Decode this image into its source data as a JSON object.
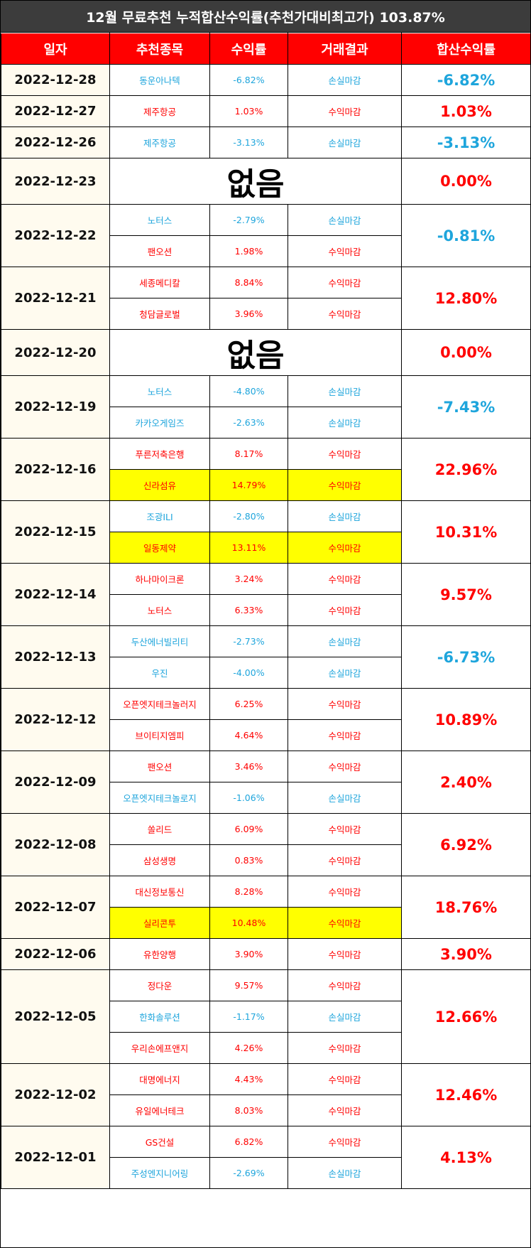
{
  "header": {
    "title": "12월 무료추천 누적합산수익률(추천가대비최고가) 103.87%"
  },
  "table": {
    "columns": [
      "일자",
      "추천종목",
      "수익률",
      "거래결과",
      "합산수익률"
    ],
    "rows": [
      {
        "date": "2022-12-28",
        "items": [
          {
            "name": "동운아나텍",
            "rate": "-6.82%",
            "result": "손실마감"
          }
        ],
        "total": "-6.82%"
      },
      {
        "date": "2022-12-27",
        "items": [
          {
            "name": "제주항공",
            "rate": "1.03%",
            "result": "수익마감"
          }
        ],
        "total": "1.03%"
      },
      {
        "date": "2022-12-26",
        "items": [
          {
            "name": "제주항공",
            "rate": "-3.13%",
            "result": "손실마감"
          }
        ],
        "total": "-3.13%"
      },
      {
        "date": "2022-12-23",
        "note": "없음",
        "total": "0.00%"
      },
      {
        "date": "2022-12-22",
        "items": [
          {
            "name": "노터스",
            "rate": "-2.79%",
            "result": "손실마감"
          },
          {
            "name": "팬오션",
            "rate": "1.98%",
            "result": "수익마감"
          }
        ],
        "total": "-0.81%"
      },
      {
        "date": "2022-12-21",
        "items": [
          {
            "name": "세종메디칼",
            "rate": "8.84%",
            "result": "수익마감"
          },
          {
            "name": "청담글로벌",
            "rate": "3.96%",
            "result": "수익마감"
          }
        ],
        "total": "12.80%"
      },
      {
        "date": "2022-12-20",
        "note": "없음",
        "total": "0.00%"
      },
      {
        "date": "2022-12-19",
        "items": [
          {
            "name": "노터스",
            "rate": "-4.80%",
            "result": "손실마감"
          },
          {
            "name": "카카오게임즈",
            "rate": "-2.63%",
            "result": "손실마감"
          }
        ],
        "total": "-7.43%"
      },
      {
        "date": "2022-12-16",
        "items": [
          {
            "name": "푸른저축은행",
            "rate": "8.17%",
            "result": "수익마감"
          },
          {
            "name": "신라섬유",
            "rate": "14.79%",
            "result": "수익마감",
            "highlight": true
          }
        ],
        "total": "22.96%"
      },
      {
        "date": "2022-12-15",
        "items": [
          {
            "name": "조광ILI",
            "rate": "-2.80%",
            "result": "손실마감"
          },
          {
            "name": "일동제약",
            "rate": "13.11%",
            "result": "수익마감",
            "highlight": true
          }
        ],
        "total": "10.31%"
      },
      {
        "date": "2022-12-14",
        "items": [
          {
            "name": "하나마이크론",
            "rate": "3.24%",
            "result": "수익마감"
          },
          {
            "name": "노터스",
            "rate": "6.33%",
            "result": "수익마감"
          }
        ],
        "total": "9.57%"
      },
      {
        "date": "2022-12-13",
        "items": [
          {
            "name": "두산에너빌리티",
            "rate": "-2.73%",
            "result": "손실마감"
          },
          {
            "name": "우진",
            "rate": "-4.00%",
            "result": "손실마감"
          }
        ],
        "total": "-6.73%"
      },
      {
        "date": "2022-12-12",
        "items": [
          {
            "name": "오픈엣지테크놀러지",
            "rate": "6.25%",
            "result": "수익마감"
          },
          {
            "name": "브이티지엠피",
            "rate": "4.64%",
            "result": "수익마감"
          }
        ],
        "total": "10.89%"
      },
      {
        "date": "2022-12-09",
        "items": [
          {
            "name": "팬오션",
            "rate": "3.46%",
            "result": "수익마감"
          },
          {
            "name": "오픈엣지테크놀로지",
            "rate": "-1.06%",
            "result": "손실마감"
          }
        ],
        "total": "2.40%"
      },
      {
        "date": "2022-12-08",
        "items": [
          {
            "name": "쏠리드",
            "rate": "6.09%",
            "result": "수익마감"
          },
          {
            "name": "삼성생명",
            "rate": "0.83%",
            "result": "수익마감"
          }
        ],
        "total": "6.92%"
      },
      {
        "date": "2022-12-07",
        "items": [
          {
            "name": "대신정보통신",
            "rate": "8.28%",
            "result": "수익마감"
          },
          {
            "name": "실리콘투",
            "rate": "10.48%",
            "result": "수익마감",
            "highlight": true
          }
        ],
        "total": "18.76%"
      },
      {
        "date": "2022-12-06",
        "items": [
          {
            "name": "유한양행",
            "rate": "3.90%",
            "result": "수익마감"
          }
        ],
        "total": "3.90%"
      },
      {
        "date": "2022-12-05",
        "items": [
          {
            "name": "정다운",
            "rate": "9.57%",
            "result": "수익마감"
          },
          {
            "name": "한화솔루션",
            "rate": "-1.17%",
            "result": "손실마감"
          },
          {
            "name": "우리손에프앤지",
            "rate": "4.26%",
            "result": "수익마감"
          }
        ],
        "total": "12.66%"
      },
      {
        "date": "2022-12-02",
        "items": [
          {
            "name": "대명에너지",
            "rate": "4.43%",
            "result": "수익마감"
          },
          {
            "name": "유일에너테크",
            "rate": "8.03%",
            "result": "수익마감"
          }
        ],
        "total": "12.46%"
      },
      {
        "date": "2022-12-01",
        "items": [
          {
            "name": "GS건설",
            "rate": "6.82%",
            "result": "수익마감"
          },
          {
            "name": "주성엔지니어링",
            "rate": "-2.69%",
            "result": "손실마감"
          }
        ],
        "total": "4.13%"
      }
    ]
  }
}
